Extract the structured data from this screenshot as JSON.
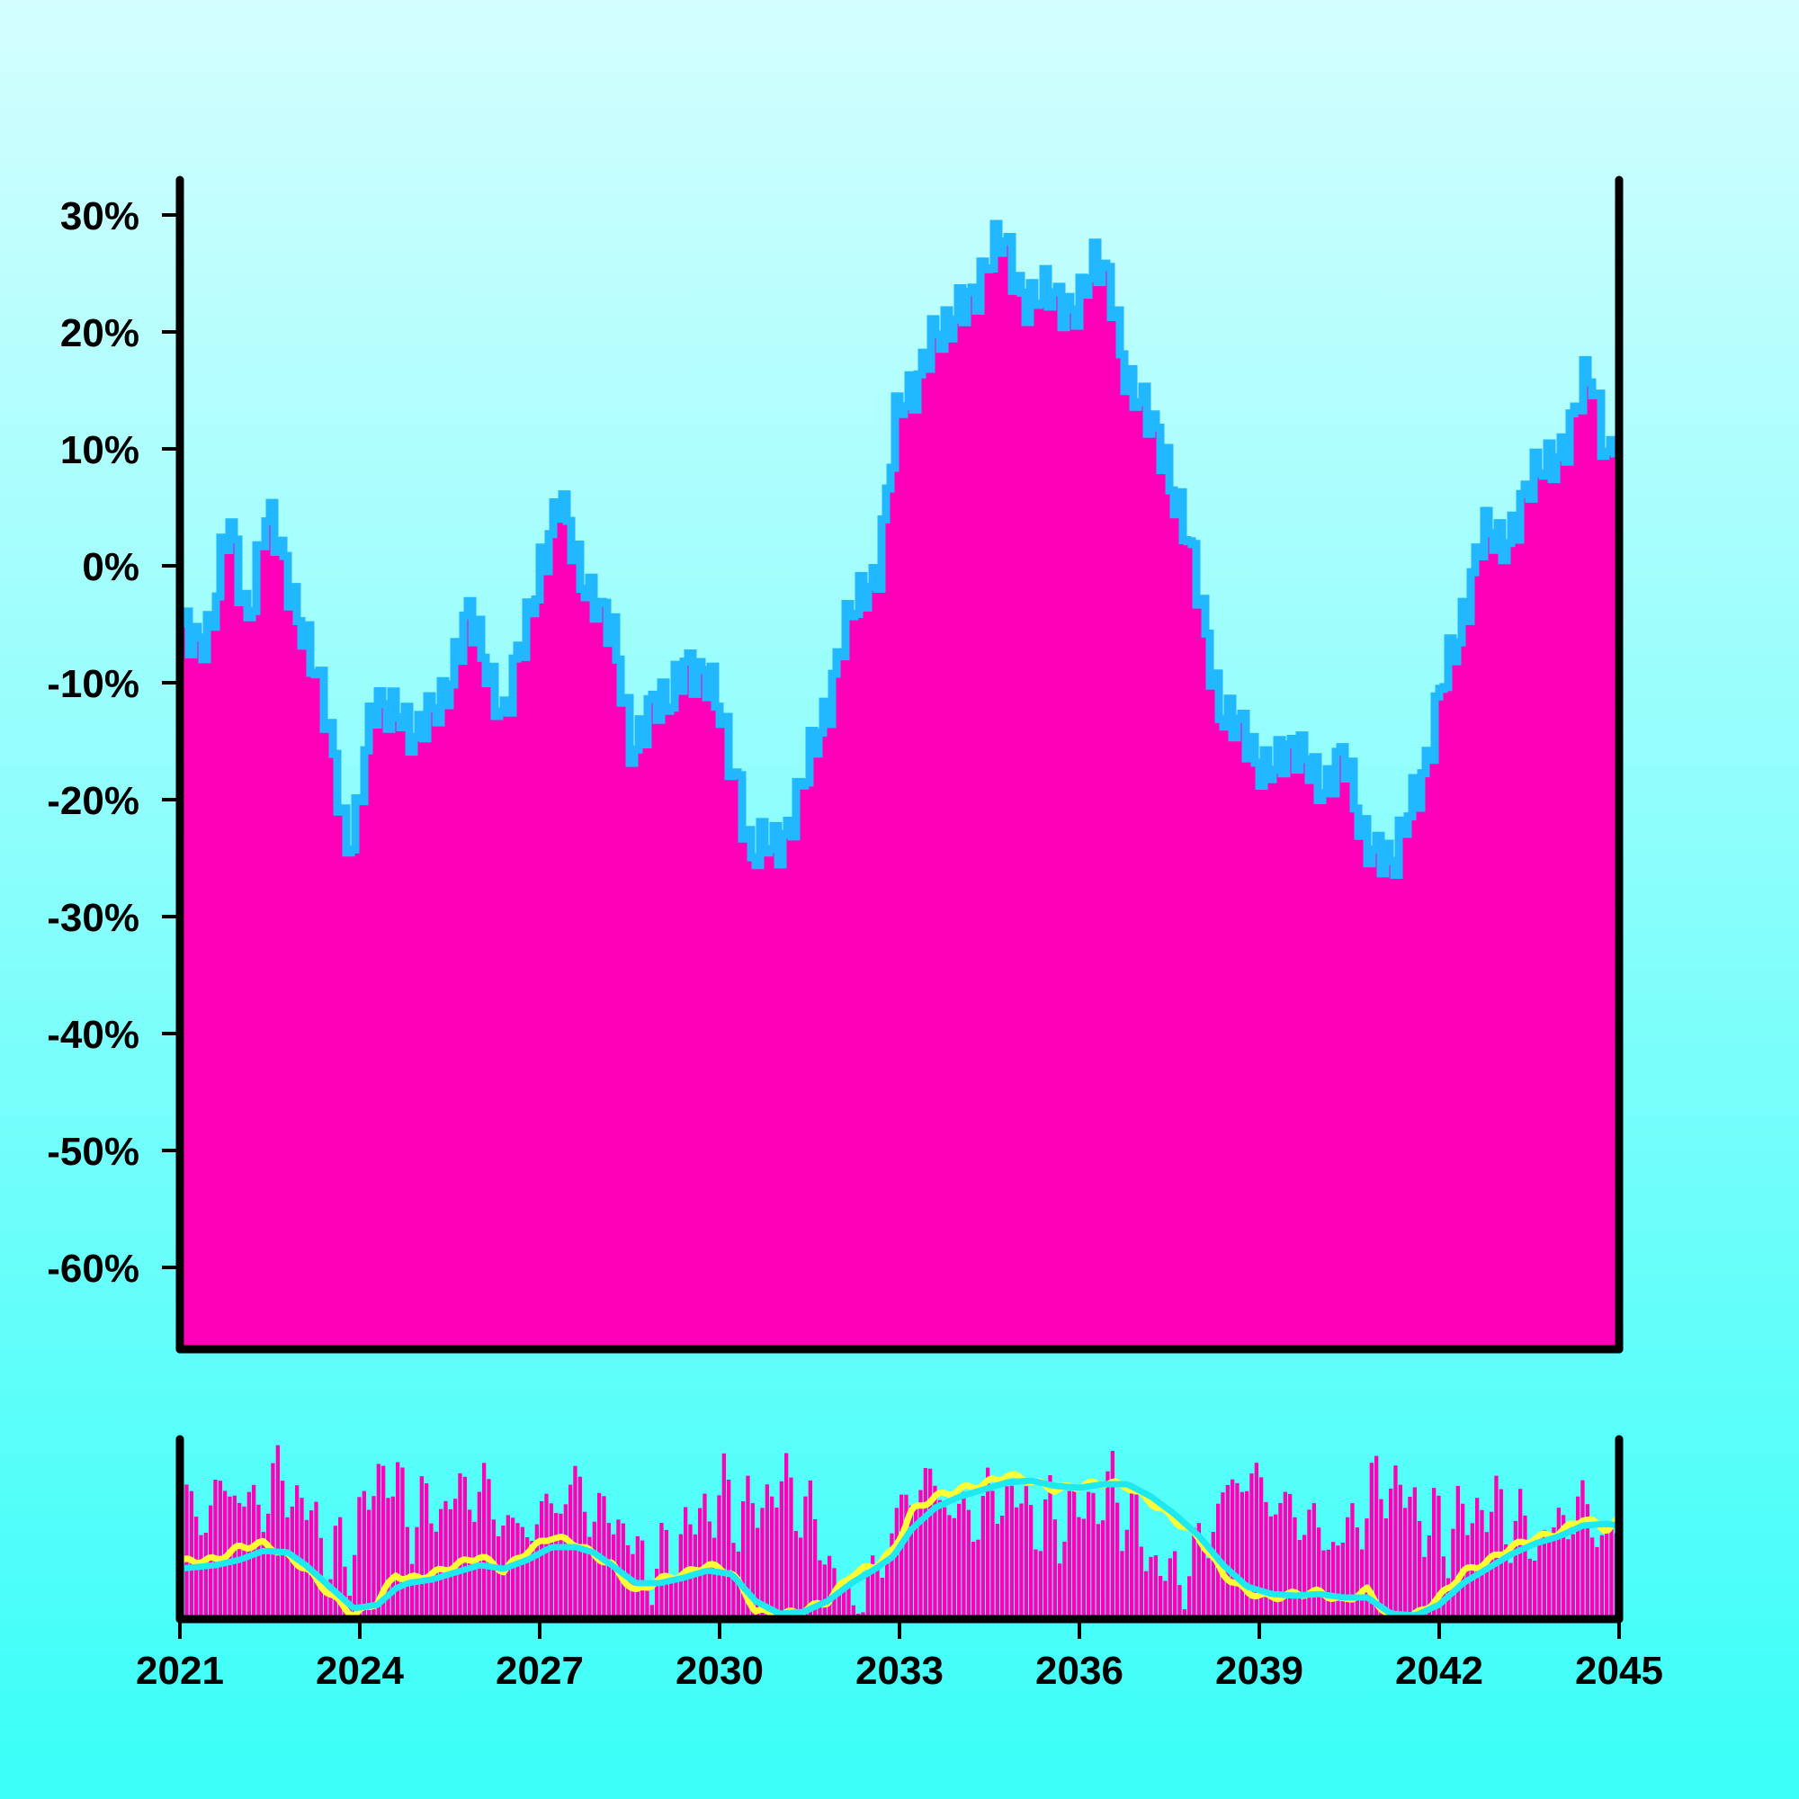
{
  "colors": {
    "area_fill": "#ff00b8",
    "area_line": "#22b8ff",
    "volume_bar": "#ff00b8",
    "ma_fast": "#ffff33",
    "ma_slow": "#1ee8f0",
    "axis": "#000000"
  },
  "chart_data": [
    {
      "type": "area",
      "title": "",
      "xlabel": "",
      "ylabel": "",
      "x_range": [
        2021,
        2045
      ],
      "ylim": [
        -0.67,
        0.33
      ],
      "y_ticks": [
        0.3,
        0.2,
        0.1,
        0.0,
        -0.1,
        -0.2,
        -0.3,
        -0.4,
        -0.5,
        -0.6
      ],
      "y_tick_labels": [
        "30%",
        "20%",
        "10%",
        "0%",
        "-10%",
        "-20%",
        "-30%",
        "-40%",
        "-50%",
        "-60%"
      ],
      "grid": false,
      "series": [
        {
          "x": [
            2021.0,
            2021.5,
            2021.8,
            2022.1,
            2022.4,
            2022.7,
            2023.0,
            2023.3,
            2023.6,
            2023.75,
            2023.9,
            2024.2,
            2024.6,
            2024.9,
            2025.2,
            2025.5,
            2025.8,
            2026.1,
            2026.4,
            2026.7,
            2027.0,
            2027.3,
            2027.6,
            2027.9,
            2028.2,
            2028.5,
            2028.8,
            2029.1,
            2029.4,
            2029.7,
            2030.0,
            2030.3,
            2030.5,
            2030.8,
            2031.1,
            2031.4,
            2031.7,
            2032.0,
            2032.3,
            2032.6,
            2032.9,
            2033.2,
            2033.5,
            2033.8,
            2034.1,
            2034.4,
            2034.7,
            2035.0,
            2035.3,
            2035.6,
            2035.9,
            2036.2,
            2036.5,
            2036.8,
            2037.1,
            2037.4,
            2037.7,
            2038.0,
            2038.3,
            2038.6,
            2038.9,
            2039.2,
            2039.5,
            2039.8,
            2040.1,
            2040.4,
            2040.7,
            2041.0,
            2041.2,
            2041.5,
            2041.8,
            2042.1,
            2042.4,
            2042.7,
            2043.0,
            2043.3,
            2043.6,
            2043.9,
            2044.2,
            2044.5,
            2044.8,
            2045.0
          ],
          "values": [
            -0.06,
            -0.05,
            0.03,
            -0.04,
            0.04,
            0.0,
            -0.04,
            -0.11,
            -0.18,
            -0.23,
            -0.22,
            -0.13,
            -0.11,
            -0.16,
            -0.12,
            -0.09,
            -0.05,
            -0.08,
            -0.13,
            -0.07,
            0.01,
            0.05,
            0.0,
            -0.02,
            -0.07,
            -0.15,
            -0.12,
            -0.13,
            -0.07,
            -0.1,
            -0.13,
            -0.18,
            -0.26,
            -0.24,
            -0.22,
            -0.19,
            -0.13,
            -0.06,
            -0.04,
            0.0,
            0.12,
            0.14,
            0.21,
            0.19,
            0.23,
            0.26,
            0.27,
            0.24,
            0.23,
            0.22,
            0.23,
            0.25,
            0.24,
            0.16,
            0.12,
            0.1,
            0.04,
            -0.04,
            -0.11,
            -0.14,
            -0.17,
            -0.16,
            -0.17,
            -0.16,
            -0.19,
            -0.17,
            -0.22,
            -0.25,
            -0.27,
            -0.19,
            -0.17,
            -0.09,
            -0.03,
            0.02,
            0.02,
            0.05,
            0.07,
            0.1,
            0.12,
            0.16,
            0.1,
            0.13
          ]
        }
      ]
    },
    {
      "type": "bar",
      "title": "",
      "x_range": [
        2021,
        2045
      ],
      "x_ticks": [
        2021,
        2024,
        2027,
        2030,
        2033,
        2036,
        2039,
        2042,
        2045
      ],
      "x_tick_labels": [
        "2021",
        "2024",
        "2027",
        "2030",
        "2033",
        "2036",
        "2039",
        "2042",
        "2045"
      ],
      "ylim": [
        0,
        1
      ],
      "bar_count": 300,
      "bar_base_values": [
        0.72,
        0.55,
        0.62,
        0.75,
        0.68,
        0.6,
        0.73,
        0.77,
        0.65,
        0.58,
        0.35,
        0.32,
        0.45,
        0.72,
        0.85,
        0.67,
        0.55,
        0.62,
        0.6,
        0.7,
        0.72,
        0.68,
        0.57,
        0.48,
        0.52,
        0.6,
        0.66,
        0.74,
        0.63,
        0.55,
        0.58,
        0.38,
        0.3,
        0.3,
        0.42,
        0.52,
        0.6,
        0.68,
        0.62,
        0.58,
        0.66,
        0.74,
        0.72,
        0.58,
        0.45,
        0.22,
        0.1,
        0.11,
        0.3,
        0.52,
        0.68,
        0.77,
        0.72,
        0.6,
        0.56,
        0.62,
        0.66,
        0.7,
        0.62,
        0.55,
        0.53,
        0.58,
        0.63,
        0.66,
        0.7,
        0.62,
        0.45,
        0.3,
        0.24,
        0.26,
        0.38,
        0.55,
        0.72,
        0.8,
        0.75,
        0.66,
        0.6,
        0.58,
        0.5,
        0.42,
        0.45,
        0.58,
        0.7,
        0.77,
        0.7,
        0.6,
        0.5,
        0.48,
        0.55,
        0.6,
        0.62,
        0.58,
        0.5,
        0.44,
        0.46,
        0.55,
        0.62,
        0.56,
        0.45,
        0.42
      ],
      "moving_averages": [
        {
          "label": "",
          "x": [
            2021,
            2021.6,
            2022.0,
            2022.4,
            2022.8,
            2023.1,
            2023.5,
            2023.9,
            2024.3,
            2024.6,
            2024.8,
            2025.2,
            2025.6,
            2026.0,
            2026.4,
            2026.8,
            2027.2,
            2027.6,
            2027.9,
            2028.2,
            2028.6,
            2029.0,
            2029.4,
            2029.8,
            2030.2,
            2030.6,
            2031.0,
            2031.4,
            2031.8,
            2032.2,
            2032.6,
            2032.9,
            2033.2,
            2033.6,
            2034.0,
            2034.4,
            2034.8,
            2035.2,
            2035.6,
            2036.0,
            2036.4,
            2036.8,
            2037.2,
            2037.6,
            2038.0,
            2038.4,
            2038.8,
            2039.2,
            2039.6,
            2040.0,
            2040.4,
            2040.8,
            2041.2,
            2041.6,
            2042.0,
            2042.4,
            2042.8,
            2043.2,
            2043.6,
            2044.0,
            2044.4,
            2044.8,
            2045.0
          ],
          "values": [
            0.32,
            0.33,
            0.4,
            0.42,
            0.35,
            0.28,
            0.14,
            0.02,
            0.1,
            0.25,
            0.22,
            0.25,
            0.3,
            0.35,
            0.27,
            0.38,
            0.46,
            0.42,
            0.36,
            0.3,
            0.15,
            0.22,
            0.25,
            0.3,
            0.26,
            0.05,
            0.02,
            0.05,
            0.1,
            0.25,
            0.3,
            0.38,
            0.6,
            0.68,
            0.72,
            0.75,
            0.8,
            0.77,
            0.72,
            0.74,
            0.76,
            0.74,
            0.65,
            0.55,
            0.45,
            0.25,
            0.15,
            0.12,
            0.14,
            0.15,
            0.1,
            0.16,
            0.0,
            0.02,
            0.12,
            0.26,
            0.32,
            0.4,
            0.45,
            0.48,
            0.56,
            0.5,
            0.55
          ]
        },
        {
          "label": "",
          "x": [
            2021,
            2021.6,
            2022.0,
            2022.4,
            2022.8,
            2023.1,
            2023.5,
            2023.9,
            2024.3,
            2024.6,
            2024.8,
            2025.2,
            2025.6,
            2026.0,
            2026.4,
            2026.8,
            2027.2,
            2027.6,
            2027.9,
            2028.2,
            2028.6,
            2029.0,
            2029.4,
            2029.8,
            2030.2,
            2030.6,
            2031.0,
            2031.4,
            2031.8,
            2032.2,
            2032.6,
            2032.9,
            2033.2,
            2033.6,
            2034.0,
            2034.4,
            2034.8,
            2035.2,
            2035.6,
            2036.0,
            2036.4,
            2036.8,
            2037.2,
            2037.6,
            2038.0,
            2038.4,
            2038.8,
            2039.2,
            2039.6,
            2040.0,
            2040.4,
            2040.8,
            2041.2,
            2041.6,
            2042.0,
            2042.4,
            2042.8,
            2043.2,
            2043.6,
            2044.0,
            2044.4,
            2044.8,
            2045.0
          ],
          "values": [
            0.28,
            0.3,
            0.33,
            0.38,
            0.37,
            0.3,
            0.18,
            0.06,
            0.08,
            0.17,
            0.2,
            0.22,
            0.26,
            0.3,
            0.28,
            0.33,
            0.4,
            0.4,
            0.37,
            0.3,
            0.2,
            0.2,
            0.23,
            0.27,
            0.25,
            0.1,
            0.03,
            0.04,
            0.1,
            0.2,
            0.28,
            0.35,
            0.5,
            0.62,
            0.68,
            0.72,
            0.76,
            0.77,
            0.74,
            0.73,
            0.75,
            0.75,
            0.68,
            0.58,
            0.46,
            0.3,
            0.18,
            0.14,
            0.13,
            0.14,
            0.12,
            0.12,
            0.03,
            0.02,
            0.08,
            0.2,
            0.28,
            0.36,
            0.42,
            0.46,
            0.52,
            0.53,
            0.52
          ]
        }
      ]
    }
  ]
}
